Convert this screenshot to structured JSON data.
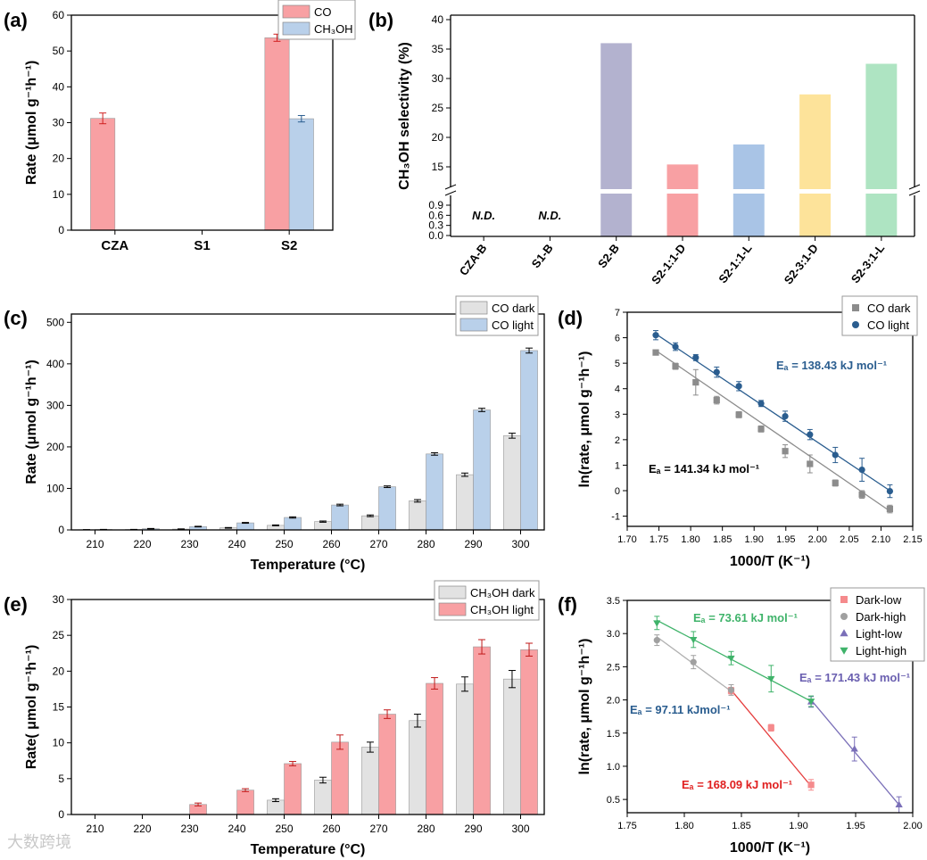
{
  "watermark": "大数跨境",
  "chart_data": [
    {
      "panel_label": "(a)",
      "type": "bar",
      "title": "",
      "ylabel": "Rate (μmol g⁻¹h⁻¹)",
      "xlabel": "",
      "ylim": [
        0,
        60
      ],
      "yticks": [
        0,
        10,
        20,
        30,
        40,
        50,
        60
      ],
      "categories": [
        "CZA",
        "S1",
        "S2"
      ],
      "legend_position": "top-right",
      "series": [
        {
          "name": "CO",
          "color": "#f8a0a3",
          "values": [
            31.2,
            null,
            53.7
          ],
          "errors": [
            1.5,
            null,
            1.0
          ]
        },
        {
          "name": "CH₃OH",
          "color": "#b9d0ea",
          "values": [
            null,
            null,
            31.1
          ],
          "errors": [
            null,
            null,
            0.9
          ]
        }
      ]
    },
    {
      "panel_label": "(b)",
      "type": "bar",
      "title": "",
      "ylabel": "CH₃OH selectivity (%)",
      "xlabel": "",
      "axis_break": true,
      "lower_range": [
        0,
        0.9
      ],
      "lower_ticks": [
        "0.0",
        "0.3",
        "0.6",
        "0.9"
      ],
      "upper_range": [
        10,
        40
      ],
      "upper_ticks": [
        15,
        20,
        25,
        30,
        35,
        40
      ],
      "categories": [
        "CZA-B",
        "S1-B",
        "S2-B",
        "S2-1:1-D",
        "S2-1:1-L",
        "S2-3:1-D",
        "S2-3:1-L"
      ],
      "values": [
        null,
        null,
        36.0,
        15.4,
        18.8,
        27.3,
        32.5
      ],
      "colors": [
        "",
        "",
        "#b3b2cf",
        "#f8a0a3",
        "#a9c4e6",
        "#fde39a",
        "#aee4c2"
      ],
      "annotations": [
        "N.D.",
        "N.D.",
        "",
        "",
        "",
        "",
        ""
      ]
    },
    {
      "panel_label": "(c)",
      "type": "bar",
      "title": "",
      "ylabel": "Rate (μmol g⁻¹h⁻¹)",
      "xlabel": "Temperature (°C)",
      "ylim": [
        0,
        520
      ],
      "yticks": [
        0,
        100,
        200,
        300,
        400,
        500
      ],
      "categories": [
        "210",
        "220",
        "230",
        "240",
        "250",
        "260",
        "270",
        "280",
        "290",
        "300"
      ],
      "legend_position": "top-right",
      "series": [
        {
          "name": "CO dark",
          "color": "#e2e2e2",
          "values": [
            0.5,
            1,
            2,
            5,
            11,
            20,
            34,
            70,
            133,
            227
          ],
          "errors": [
            0.3,
            0.3,
            0.5,
            0.8,
            1,
            1.5,
            2,
            3,
            4,
            6
          ]
        },
        {
          "name": "CO light",
          "color": "#b9d0ea",
          "values": [
            1,
            3,
            8,
            17,
            30,
            60,
            104,
            183,
            289,
            432
          ],
          "errors": [
            0.3,
            0.5,
            0.8,
            1,
            1.5,
            2,
            2,
            3,
            4,
            6
          ]
        }
      ]
    },
    {
      "panel_label": "(d)",
      "type": "scatter",
      "title": "",
      "ylabel": "ln(rate, μmol g⁻¹h⁻¹)",
      "xlabel": "1000/T (K⁻¹)",
      "xlim": [
        1.7,
        2.15
      ],
      "ylim": [
        -1.4,
        7
      ],
      "xticks": [
        "1.70",
        "1.75",
        "1.80",
        "1.85",
        "1.90",
        "1.95",
        "2.00",
        "2.05",
        "2.10",
        "2.15"
      ],
      "yticks": [
        -1,
        0,
        1,
        2,
        3,
        4,
        5,
        6,
        7
      ],
      "legend_position": "top-right",
      "series": [
        {
          "name": "CO dark",
          "color": "#8c8c8c",
          "marker": "square",
          "x": [
            1.745,
            1.776,
            1.808,
            1.841,
            1.876,
            1.911,
            1.949,
            1.988,
            2.028,
            2.07,
            2.114
          ],
          "y": [
            5.42,
            4.88,
            4.25,
            3.55,
            2.98,
            2.42,
            1.55,
            1.05,
            0.3,
            -0.15,
            -0.72
          ],
          "errors": [
            0.1,
            0.12,
            0.5,
            0.15,
            0.12,
            0.12,
            0.25,
            0.35,
            0.12,
            0.15,
            0.15
          ],
          "fit": [
            [
              1.745,
              5.5
            ],
            [
              2.114,
              -0.8
            ]
          ],
          "fit_label": "Eₐ = 141.34 kJ mol⁻¹"
        },
        {
          "name": "CO light",
          "color": "#2a5d8f",
          "marker": "circle",
          "x": [
            1.745,
            1.776,
            1.808,
            1.841,
            1.876,
            1.911,
            1.949,
            1.988,
            2.028,
            2.07,
            2.114
          ],
          "y": [
            6.1,
            5.65,
            5.22,
            4.65,
            4.1,
            3.42,
            2.92,
            2.2,
            1.4,
            0.82,
            -0.02
          ],
          "errors": [
            0.18,
            0.15,
            0.12,
            0.2,
            0.18,
            0.12,
            0.2,
            0.2,
            0.3,
            0.45,
            0.25
          ],
          "fit": [
            [
              1.745,
              6.15
            ],
            [
              2.114,
              0.0
            ]
          ],
          "fit_label": "Eₐ = 138.43 kJ mol⁻¹"
        }
      ]
    },
    {
      "panel_label": "(e)",
      "type": "bar",
      "title": "",
      "ylabel": "Rate( μmol g⁻¹h⁻¹)",
      "xlabel": "Temperature (°C)",
      "ylim": [
        0,
        30
      ],
      "yticks": [
        0,
        5,
        10,
        15,
        20,
        25,
        30
      ],
      "categories": [
        "210",
        "220",
        "230",
        "240",
        "250",
        "260",
        "270",
        "280",
        "290",
        "300"
      ],
      "legend_position": "top-right",
      "series": [
        {
          "name": "CH₃OH dark",
          "color": "#e2e2e2",
          "values": [
            null,
            null,
            null,
            null,
            2.0,
            4.8,
            9.4,
            13.1,
            18.2,
            18.9
          ],
          "errors": [
            null,
            null,
            null,
            null,
            0.2,
            0.4,
            0.7,
            0.9,
            1.0,
            1.2
          ]
        },
        {
          "name": "CH₃OH light",
          "color": "#f8a0a3",
          "values": [
            null,
            null,
            1.4,
            3.4,
            7.1,
            10.1,
            14.0,
            18.3,
            23.4,
            23.0
          ],
          "errors": [
            null,
            null,
            0.2,
            0.2,
            0.3,
            1.0,
            0.6,
            0.8,
            1.0,
            0.9
          ]
        }
      ]
    },
    {
      "panel_label": "(f)",
      "type": "scatter",
      "title": "",
      "ylabel": "ln(rate, μmol g⁻¹h⁻¹)",
      "xlabel": "1000/T (K⁻¹)",
      "xlim": [
        1.75,
        2.0
      ],
      "ylim": [
        0.3,
        3.5
      ],
      "xticks": [
        "1.75",
        "1.80",
        "1.85",
        "1.90",
        "1.95",
        "2.00"
      ],
      "yticks": [
        "0.5",
        "1.0",
        "1.5",
        "2.0",
        "2.5",
        "3.0",
        "3.5"
      ],
      "legend_position": "top-right",
      "series": [
        {
          "name": "Dark-low",
          "color": "#f58a8c",
          "marker": "square",
          "x": [
            1.841,
            1.876,
            1.911
          ],
          "y": [
            2.14,
            1.58,
            0.72
          ],
          "errors": [
            0.05,
            0.05,
            0.08
          ]
        },
        {
          "name": "Dark-high",
          "color": "#a0a0a0",
          "marker": "circle",
          "x": [
            1.776,
            1.808,
            1.841
          ],
          "y": [
            2.9,
            2.57,
            2.15
          ],
          "errors": [
            0.08,
            0.1,
            0.08
          ]
        },
        {
          "name": "Light-low",
          "color": "#7a6fb8",
          "marker": "triangle-up",
          "x": [
            1.911,
            1.949,
            1.988
          ],
          "y": [
            1.97,
            1.26,
            0.42
          ],
          "errors": [
            0.08,
            0.18,
            0.12
          ]
        },
        {
          "name": "Light-high",
          "color": "#3fb36a",
          "marker": "triangle-down",
          "x": [
            1.776,
            1.808,
            1.841,
            1.876,
            1.911
          ],
          "y": [
            3.16,
            2.91,
            2.63,
            2.32,
            1.98
          ],
          "errors": [
            0.1,
            0.12,
            0.1,
            0.2,
            0.08
          ]
        }
      ],
      "fits": [
        {
          "color": "#3fb36a",
          "points": [
            [
              1.776,
              3.2
            ],
            [
              1.911,
              1.98
            ]
          ],
          "label": "Eₐ = 73.61 kJ mol⁻¹",
          "label_color": "#3fb36a"
        },
        {
          "color": "#b0b0b0",
          "points": [
            [
              1.776,
              2.95
            ],
            [
              1.841,
              2.13
            ]
          ],
          "label": "Eₐ = 97.11 kJmol⁻¹",
          "label_color": "#2a5d8f"
        },
        {
          "color": "#e53c3c",
          "points": [
            [
              1.841,
              2.15
            ],
            [
              1.911,
              0.7
            ]
          ],
          "label": "Eₐ = 168.09 kJ mol⁻¹",
          "label_color": "#e02020"
        },
        {
          "color": "#7a6fb8",
          "points": [
            [
              1.911,
              2.0
            ],
            [
              1.988,
              0.42
            ]
          ],
          "label": "Eₐ = 171.43 kJ mol⁻¹",
          "label_color": "#6a5fb0"
        }
      ]
    }
  ]
}
